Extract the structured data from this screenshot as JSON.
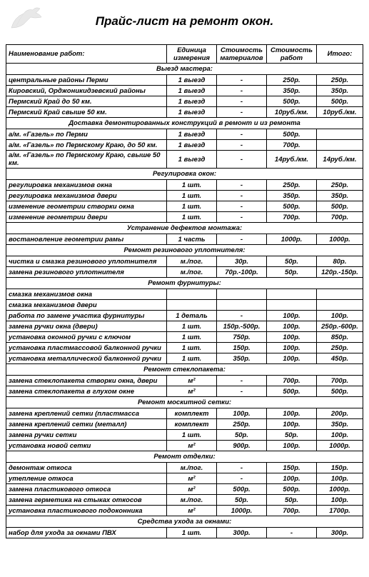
{
  "title": "Прайс-лист на ремонт окон.",
  "headers": {
    "name": "Наименование работ:",
    "unit": "Единица измерения",
    "materials": "Стоимость материалов",
    "work": "Стоимость работ",
    "total": "Итого:"
  },
  "sections": [
    {
      "title": "Выезд мастера:",
      "rows": [
        {
          "name": "центральные районы Перми",
          "unit": "1 выезд",
          "mat": "-",
          "work": "250р.",
          "total": "250р."
        },
        {
          "name": "Кировский, Орджоникидзевский районы",
          "unit": "1 выезд",
          "mat": "-",
          "work": "350р.",
          "total": "350р."
        },
        {
          "name": "Пермский Край до 50 км.",
          "unit": "1 выезд",
          "mat": "-",
          "work": "500р.",
          "total": "500р."
        },
        {
          "name": "Пермский Край свыше 50 км.",
          "unit": "1 выезд",
          "mat": "-",
          "work": "10руб./км.",
          "total": "10руб./км."
        }
      ]
    },
    {
      "title": "Доставка демонтированных конструкций в ремонт и из ремонта",
      "rows": [
        {
          "name": "а/м. «Газель» по Перми",
          "unit": "1 выезд",
          "mat": "-",
          "work": "500р.",
          "total": ""
        },
        {
          "name": "а/м. «Газель» по Пермскому Краю, до 50 км.",
          "unit": "1 выезд",
          "mat": "-",
          "work": "700р.",
          "total": ""
        },
        {
          "name": "а/м. «Газель» по Пермскому Краю, свыше 50 км.",
          "unit": "1 выезд",
          "mat": "-",
          "work": "14руб./км.",
          "total": "14руб./км."
        }
      ]
    },
    {
      "title": "Регулировка окон:",
      "rows": [
        {
          "name": "регулировка механизмов окна",
          "unit": "1 шт.",
          "mat": "-",
          "work": "250р.",
          "total": "250р."
        },
        {
          "name": "регулировка механизмов двери",
          "unit": "1 шт.",
          "mat": "-",
          "work": "350р.",
          "total": "350р."
        },
        {
          "name": "изменение геометрии створки окна",
          "unit": "1 шт.",
          "mat": "-",
          "work": "500р.",
          "total": "500р."
        },
        {
          "name": "изменение геометрии двери",
          "unit": "1 шт.",
          "mat": "-",
          "work": "700р.",
          "total": "700р."
        }
      ]
    },
    {
      "title": "Устранение дефектов монтажа:",
      "rows": [
        {
          "name": "востановление геометрии  рамы",
          "unit": "1 часть",
          "mat": "-",
          "work": "1000р.",
          "total": "1000р."
        }
      ]
    },
    {
      "title": "Ремонт резинового уплотнителя:",
      "rows": [
        {
          "name": "чистка и смазка резинового уплотнителя",
          "unit": "м./пог.",
          "mat": "30р.",
          "work": "50р.",
          "total": "80р."
        },
        {
          "name": "замена резинового уплотнителя",
          "unit": "м./пог.",
          "mat": "70р.-100р.",
          "work": "50р.",
          "total": "120р.-150р."
        }
      ]
    },
    {
      "title": "Ремонт фурнитуры:",
      "rows": [
        {
          "name": "смазка механизмов окна",
          "unit": "",
          "mat": "",
          "work": "",
          "total": ""
        },
        {
          "name": "смазка механизмов двери",
          "unit": "",
          "mat": "",
          "work": "",
          "total": ""
        },
        {
          "name": "работа по замене участка фурнитуры",
          "unit": "1 деталь",
          "mat": "-",
          "work": "100р.",
          "total": "100р."
        },
        {
          "name": "замена ручки окна (двери)",
          "unit": "1 шт.",
          "mat": "150р.-500р.",
          "work": "100р.",
          "total": "250р.-600р."
        },
        {
          "name": "установка оконной ручки с ключом",
          "unit": "1 шт.",
          "mat": "750р.",
          "work": "100р.",
          "total": "850р."
        },
        {
          "name": "установка пластмассовой балконной ручки",
          "unit": "1 шт.",
          "mat": "150р.",
          "work": "100р.",
          "total": "250р."
        },
        {
          "name": "установка металлической балконной ручки",
          "unit": "1 шт.",
          "mat": "350р.",
          "work": "100р.",
          "total": "450р."
        }
      ]
    },
    {
      "title": "Ремонт стеклопакета:",
      "rows": [
        {
          "name": "замена стеклопакета створки окна, двери",
          "unit": "м²",
          "mat": "-",
          "work": "700р.",
          "total": "700р."
        },
        {
          "name": "замена стеклопакета в глухом окне",
          "unit": "м²",
          "mat": "-",
          "work": "500р.",
          "total": "500р."
        }
      ]
    },
    {
      "title": "Ремонт москитной сетки:",
      "rows": [
        {
          "name": "замена креплений сетки (пластмасса",
          "unit": "комплект",
          "mat": "100р.",
          "work": "100р.",
          "total": "200р."
        },
        {
          "name": "замена креплений сетки (металл)",
          "unit": "комплект",
          "mat": "250р.",
          "work": "100р.",
          "total": "350р."
        },
        {
          "name": "замена ручки сетки",
          "unit": "1 шт.",
          "mat": "50р.",
          "work": "50р.",
          "total": "100р."
        },
        {
          "name": "установка новой сетки",
          "unit": "м²",
          "mat": "900р.",
          "work": "100р.",
          "total": "1000р."
        }
      ]
    },
    {
      "title": "Ремонт отделки:",
      "rows": [
        {
          "name": "демонтаж откоса",
          "unit": "м./пог.",
          "mat": "-",
          "work": "150р.",
          "total": "150р."
        },
        {
          "name": "утепление откоса",
          "unit": "м²",
          "mat": "-",
          "work": "100р.",
          "total": "100р."
        },
        {
          "name": "замена пластикового откоса",
          "unit": "м²",
          "mat": "500р.",
          "work": "500р.",
          "total": "1000р."
        },
        {
          "name": "замена герметика на стыках откосов",
          "unit": "м./пог.",
          "mat": "50р.",
          "work": "50р.",
          "total": "100р."
        },
        {
          "name": "установка пластикового подоконника",
          "unit": "м²",
          "mat": "1000р.",
          "work": "700р.",
          "total": "1700р."
        }
      ]
    },
    {
      "title": "Средства ухода за окнами:",
      "rows": [
        {
          "name": "набор для ухода за окнами ПВХ",
          "unit": "1 шт.",
          "mat": "300р.",
          "work": "-",
          "total": "300р."
        }
      ]
    }
  ]
}
